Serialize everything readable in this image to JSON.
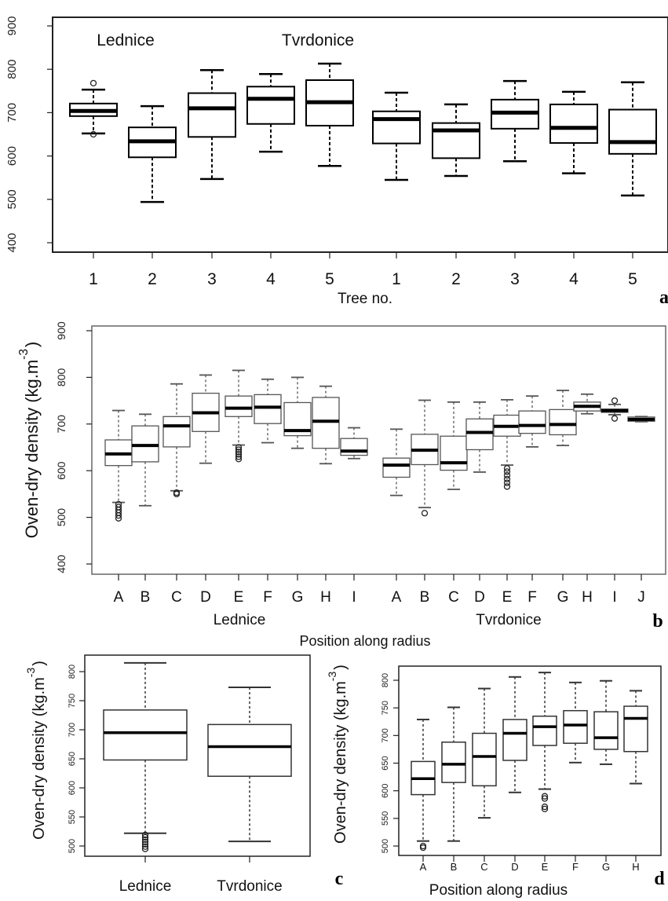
{
  "chart_data": [
    {
      "id": "a",
      "type": "boxplot",
      "panel_letter": "a",
      "xlabel": "Tree no.",
      "ylabel": "",
      "ylim": [
        400,
        900
      ],
      "yticks": [
        400,
        500,
        600,
        700,
        800,
        900
      ],
      "groups": [
        "Lednice",
        "Tvrdonice"
      ],
      "boxes": [
        {
          "group": 0,
          "label": "1",
          "low": 652,
          "q1": 692,
          "median": 704,
          "q3": 721,
          "high": 753,
          "outliers": [
            768,
            650
          ]
        },
        {
          "group": 0,
          "label": "2",
          "low": 494,
          "q1": 597,
          "median": 634,
          "q3": 666,
          "high": 715,
          "outliers": []
        },
        {
          "group": 0,
          "label": "3",
          "low": 547,
          "q1": 644,
          "median": 710,
          "q3": 745,
          "high": 798,
          "outliers": []
        },
        {
          "group": 0,
          "label": "4",
          "low": 610,
          "q1": 674,
          "median": 732,
          "q3": 760,
          "high": 789,
          "outliers": []
        },
        {
          "group": 0,
          "label": "5",
          "low": 577,
          "q1": 670,
          "median": 724,
          "q3": 775,
          "high": 813,
          "outliers": []
        },
        {
          "group": 1,
          "label": "1",
          "low": 545,
          "q1": 629,
          "median": 685,
          "q3": 703,
          "high": 746,
          "outliers": []
        },
        {
          "group": 1,
          "label": "2",
          "low": 554,
          "q1": 595,
          "median": 659,
          "q3": 676,
          "high": 719,
          "outliers": []
        },
        {
          "group": 1,
          "label": "3",
          "low": 588,
          "q1": 663,
          "median": 700,
          "q3": 730,
          "high": 773,
          "outliers": []
        },
        {
          "group": 1,
          "label": "4",
          "low": 560,
          "q1": 630,
          "median": 665,
          "q3": 719,
          "high": 748,
          "outliers": []
        },
        {
          "group": 1,
          "label": "5",
          "low": 509,
          "q1": 605,
          "median": 632,
          "q3": 707,
          "high": 770,
          "outliers": []
        }
      ]
    },
    {
      "id": "b",
      "type": "boxplot",
      "panel_letter": "b",
      "xlabel": "Position along radius",
      "ylabel": "Oven-dry density (kg.m",
      "ylabel_sup": "-3",
      "ylabel_close": ")",
      "ylim": [
        400,
        900
      ],
      "yticks": [
        400,
        500,
        600,
        700,
        800,
        900
      ],
      "groups": [
        "Lednice",
        "Tvrdonice"
      ],
      "boxes": [
        {
          "group": 0,
          "label": "A",
          "low": 532,
          "q1": 611,
          "median": 636,
          "q3": 666,
          "high": 729,
          "outliers": [
            528,
            522,
            516,
            510,
            504,
            498
          ]
        },
        {
          "group": 0,
          "label": "B",
          "low": 525,
          "q1": 619,
          "median": 654,
          "q3": 696,
          "high": 721,
          "outliers": []
        },
        {
          "group": 0,
          "label": "C",
          "low": 557,
          "q1": 651,
          "median": 696,
          "q3": 716,
          "high": 786,
          "outliers": [
            553,
            550
          ]
        },
        {
          "group": 0,
          "label": "D",
          "low": 616,
          "q1": 684,
          "median": 724,
          "q3": 766,
          "high": 805,
          "outliers": []
        },
        {
          "group": 0,
          "label": "E",
          "low": 655,
          "q1": 716,
          "median": 734,
          "q3": 760,
          "high": 815,
          "outliers": [
            650,
            645,
            640,
            635,
            630,
            625
          ]
        },
        {
          "group": 0,
          "label": "F",
          "low": 660,
          "q1": 701,
          "median": 736,
          "q3": 763,
          "high": 796,
          "outliers": []
        },
        {
          "group": 0,
          "label": "G",
          "low": 648,
          "q1": 675,
          "median": 686,
          "q3": 746,
          "high": 800,
          "outliers": []
        },
        {
          "group": 0,
          "label": "H",
          "low": 615,
          "q1": 648,
          "median": 706,
          "q3": 757,
          "high": 781,
          "outliers": []
        },
        {
          "group": 0,
          "label": "I",
          "low": 626,
          "q1": 633,
          "median": 642,
          "q3": 669,
          "high": 692,
          "outliers": []
        },
        {
          "group": 1,
          "label": "A",
          "low": 547,
          "q1": 586,
          "median": 612,
          "q3": 627,
          "high": 689,
          "outliers": []
        },
        {
          "group": 1,
          "label": "B",
          "low": 521,
          "q1": 613,
          "median": 644,
          "q3": 678,
          "high": 751,
          "outliers": [
            509
          ]
        },
        {
          "group": 1,
          "label": "C",
          "low": 560,
          "q1": 601,
          "median": 617,
          "q3": 674,
          "high": 747,
          "outliers": []
        },
        {
          "group": 1,
          "label": "D",
          "low": 597,
          "q1": 645,
          "median": 682,
          "q3": 711,
          "high": 747,
          "outliers": []
        },
        {
          "group": 1,
          "label": "E",
          "low": 612,
          "q1": 674,
          "median": 695,
          "q3": 719,
          "high": 752,
          "outliers": [
            605,
            598,
            590,
            582,
            574,
            566
          ]
        },
        {
          "group": 1,
          "label": "F",
          "low": 651,
          "q1": 680,
          "median": 697,
          "q3": 728,
          "high": 760,
          "outliers": []
        },
        {
          "group": 1,
          "label": "G",
          "low": 654,
          "q1": 677,
          "median": 699,
          "q3": 731,
          "high": 772,
          "outliers": []
        },
        {
          "group": 1,
          "label": "H",
          "low": 722,
          "q1": 728,
          "median": 738,
          "q3": 747,
          "high": 764,
          "outliers": []
        },
        {
          "group": 1,
          "label": "I",
          "low": 720,
          "q1": 725,
          "median": 729,
          "q3": 732,
          "high": 742,
          "outliers": [
            750,
            712
          ]
        },
        {
          "group": 1,
          "label": "J",
          "low": 705,
          "q1": 706,
          "median": 710,
          "q3": 715,
          "high": 716,
          "outliers": []
        }
      ]
    },
    {
      "id": "c",
      "type": "boxplot",
      "panel_letter": "c",
      "xlabel": "",
      "ylabel": "Oven-dry density (kg.m",
      "ylabel_sup": "-3",
      "ylabel_close": ")",
      "ylim": [
        490,
        825
      ],
      "yticks": [
        500,
        550,
        600,
        650,
        700,
        750,
        800
      ],
      "groups": [],
      "boxes": [
        {
          "group": 0,
          "label": "Lednice",
          "low": 522,
          "q1": 648,
          "median": 695,
          "q3": 734,
          "high": 815,
          "outliers": [
            519,
            515,
            511,
            507,
            503,
            499,
            495
          ]
        },
        {
          "group": 0,
          "label": "Tvrdonice",
          "low": 508,
          "q1": 620,
          "median": 671,
          "q3": 709,
          "high": 773,
          "outliers": []
        }
      ]
    },
    {
      "id": "d",
      "type": "boxplot",
      "panel_letter": "d",
      "xlabel": "Position along radius",
      "ylabel": "Oven-dry density (kg.m",
      "ylabel_sup": "-3",
      "ylabel_close": ")",
      "ylim": [
        485,
        825
      ],
      "yticks": [
        500,
        550,
        600,
        650,
        700,
        750,
        800
      ],
      "groups": [],
      "boxes": [
        {
          "group": 0,
          "label": "A",
          "low": 509,
          "q1": 593,
          "median": 622,
          "q3": 653,
          "high": 729,
          "outliers": [
            500,
            497
          ]
        },
        {
          "group": 0,
          "label": "B",
          "low": 509,
          "q1": 615,
          "median": 648,
          "q3": 688,
          "high": 751,
          "outliers": []
        },
        {
          "group": 0,
          "label": "C",
          "low": 551,
          "q1": 609,
          "median": 662,
          "q3": 704,
          "high": 785,
          "outliers": []
        },
        {
          "group": 0,
          "label": "D",
          "low": 597,
          "q1": 655,
          "median": 704,
          "q3": 729,
          "high": 806,
          "outliers": []
        },
        {
          "group": 0,
          "label": "E",
          "low": 603,
          "q1": 682,
          "median": 716,
          "q3": 735,
          "high": 814,
          "outliers": [
            590,
            586,
            571,
            567
          ]
        },
        {
          "group": 0,
          "label": "F",
          "low": 651,
          "q1": 686,
          "median": 719,
          "q3": 745,
          "high": 796,
          "outliers": []
        },
        {
          "group": 0,
          "label": "G",
          "low": 648,
          "q1": 675,
          "median": 696,
          "q3": 743,
          "high": 799,
          "outliers": []
        },
        {
          "group": 0,
          "label": "H",
          "low": 613,
          "q1": 671,
          "median": 731,
          "q3": 753,
          "high": 781,
          "outliers": []
        }
      ]
    }
  ]
}
